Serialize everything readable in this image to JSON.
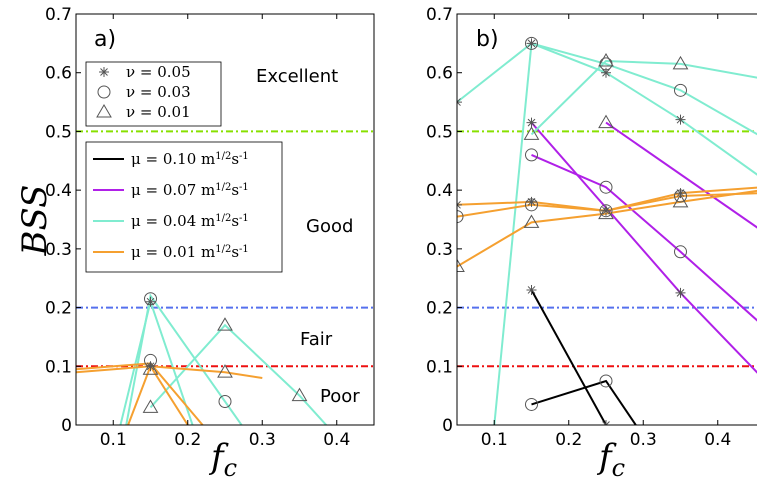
{
  "chart_data": [
    {
      "type": "line",
      "panel": "a)",
      "xlabel": "f_c",
      "ylabel": "BSS",
      "xlim": [
        0.05,
        0.45
      ],
      "ylim": [
        0,
        0.7
      ],
      "xticks": [
        "0.1",
        "0.2",
        "0.3",
        "0.4"
      ],
      "yticks": [
        "0",
        "0.1",
        "0.2",
        "0.3",
        "0.4",
        "0.5",
        "0.6",
        "0.7"
      ],
      "grid": false,
      "thresholds": [
        {
          "y": 0.5,
          "color": "#88e000"
        },
        {
          "y": 0.2,
          "color": "#5570ee"
        },
        {
          "y": 0.1,
          "color": "#ee1010"
        }
      ],
      "zones": [
        "Excellent",
        "Good",
        "Fair",
        "Poor"
      ],
      "marker_legend": [
        {
          "marker": "star",
          "label": "ν = 0.05"
        },
        {
          "marker": "circle",
          "label": "ν = 0.03"
        },
        {
          "marker": "triangle",
          "label": "ν = 0.01"
        }
      ],
      "series_legend": [
        {
          "label": "μ = 0.10 m^{1/2}s^{-1}",
          "color": "#000000"
        },
        {
          "label": "μ = 0.07 m^{1/2}s^{-1}",
          "color": "#b020e8"
        },
        {
          "label": "μ = 0.04 m^{1/2}s^{-1}",
          "color": "#80ecd0"
        },
        {
          "label": "μ = 0.01 m^{1/2}s^{-1}",
          "color": "#f5a030"
        }
      ],
      "series": [
        {
          "mu": 0.04,
          "nu": 0.05,
          "x": [
            0.1,
            0.15,
            0.22
          ],
          "y": [
            -0.05,
            0.21,
            -0.05
          ]
        },
        {
          "mu": 0.04,
          "nu": 0.03,
          "x": [
            0.11,
            0.15,
            0.25,
            0.3
          ],
          "y": [
            -0.05,
            0.22,
            0.04,
            -0.05
          ]
        },
        {
          "mu": 0.04,
          "nu": 0.01,
          "x": [
            0.15,
            0.25,
            0.35,
            0.4
          ],
          "y": [
            0.03,
            0.17,
            0.05,
            -0.02
          ]
        },
        {
          "mu": 0.01,
          "nu": 0.05,
          "x": [
            0.05,
            0.15,
            0.25,
            0.3
          ],
          "y": [
            0.09,
            0.1,
            0.09,
            0.08
          ]
        },
        {
          "mu": 0.01,
          "nu": 0.03,
          "x": [
            0.05,
            0.15,
            0.22
          ],
          "y": [
            0.095,
            0.105,
            0.0
          ]
        },
        {
          "mu": 0.01,
          "nu": 0.01,
          "x": [
            0.12,
            0.15,
            0.2
          ],
          "y": [
            0.0,
            0.1,
            0.0
          ]
        }
      ],
      "markers": [
        {
          "x": 0.15,
          "y": 0.215,
          "m": "circle"
        },
        {
          "x": 0.15,
          "y": 0.21,
          "m": "star"
        },
        {
          "x": 0.15,
          "y": 0.11,
          "m": "circle"
        },
        {
          "x": 0.15,
          "y": 0.1,
          "m": "star"
        },
        {
          "x": 0.15,
          "y": 0.095,
          "m": "triangle"
        },
        {
          "x": 0.15,
          "y": 0.03,
          "m": "triangle"
        },
        {
          "x": 0.25,
          "y": 0.17,
          "m": "triangle"
        },
        {
          "x": 0.25,
          "y": 0.09,
          "m": "triangle"
        },
        {
          "x": 0.25,
          "y": 0.04,
          "m": "circle"
        },
        {
          "x": 0.35,
          "y": 0.05,
          "m": "triangle"
        }
      ]
    },
    {
      "type": "line",
      "panel": "b)",
      "xlabel": "f_c",
      "xlim": [
        0.05,
        0.45
      ],
      "ylim": [
        0,
        0.7
      ],
      "xticks": [
        "0.1",
        "0.2",
        "0.3",
        "0.4"
      ],
      "yticks": [
        "0",
        "0.1",
        "0.2",
        "0.3",
        "0.4",
        "0.5",
        "0.6",
        "0.7"
      ],
      "grid": false,
      "thresholds": [
        {
          "y": 0.5,
          "color": "#88e000"
        },
        {
          "y": 0.2,
          "color": "#5570ee"
        },
        {
          "y": 0.1,
          "color": "#ee1010"
        }
      ],
      "series": [
        {
          "mu": 0.1,
          "nu": 0.05,
          "x": [
            0.15,
            0.25
          ],
          "y": [
            0.23,
            0.0
          ]
        },
        {
          "mu": 0.1,
          "nu": 0.03,
          "x": [
            0.15,
            0.25,
            0.29
          ],
          "y": [
            0.035,
            0.075,
            0.0
          ]
        },
        {
          "mu": 0.07,
          "nu": 0.05,
          "x": [
            0.15,
            0.35,
            0.46
          ],
          "y": [
            0.515,
            0.225,
            0.08
          ]
        },
        {
          "mu": 0.07,
          "nu": 0.03,
          "x": [
            0.15,
            0.25,
            0.35,
            0.46
          ],
          "y": [
            0.46,
            0.405,
            0.295,
            0.17
          ]
        },
        {
          "mu": 0.07,
          "nu": 0.01,
          "x": [
            0.25,
            0.46
          ],
          "y": [
            0.515,
            0.33
          ]
        },
        {
          "mu": 0.04,
          "nu": 0.05,
          "x": [
            0.05,
            0.15,
            0.25,
            0.35,
            0.46
          ],
          "y": [
            0.55,
            0.65,
            0.6,
            0.52,
            0.42
          ]
        },
        {
          "mu": 0.04,
          "nu": 0.03,
          "x": [
            0.1,
            0.15,
            0.25,
            0.35,
            0.46
          ],
          "y": [
            0.0,
            0.65,
            0.615,
            0.57,
            0.49
          ]
        },
        {
          "mu": 0.04,
          "nu": 0.01,
          "x": [
            0.15,
            0.25,
            0.35,
            0.46
          ],
          "y": [
            0.495,
            0.62,
            0.615,
            0.59
          ]
        },
        {
          "mu": 0.01,
          "nu": 0.05,
          "x": [
            0.05,
            0.15,
            0.25,
            0.35,
            0.46
          ],
          "y": [
            0.375,
            0.38,
            0.365,
            0.395,
            0.405
          ]
        },
        {
          "mu": 0.01,
          "nu": 0.03,
          "x": [
            0.05,
            0.15,
            0.25,
            0.35,
            0.46
          ],
          "y": [
            0.355,
            0.375,
            0.365,
            0.39,
            0.395
          ]
        },
        {
          "mu": 0.01,
          "nu": 0.01,
          "x": [
            0.05,
            0.15,
            0.25,
            0.35,
            0.46
          ],
          "y": [
            0.27,
            0.345,
            0.36,
            0.38,
            0.4
          ]
        }
      ],
      "markers": [
        {
          "x": 0.05,
          "y": 0.55,
          "m": "star"
        },
        {
          "x": 0.15,
          "y": 0.65,
          "m": "star"
        },
        {
          "x": 0.15,
          "y": 0.65,
          "m": "circle"
        },
        {
          "x": 0.25,
          "y": 0.6,
          "m": "star"
        },
        {
          "x": 0.25,
          "y": 0.615,
          "m": "circle"
        },
        {
          "x": 0.25,
          "y": 0.62,
          "m": "triangle"
        },
        {
          "x": 0.35,
          "y": 0.615,
          "m": "triangle"
        },
        {
          "x": 0.35,
          "y": 0.57,
          "m": "circle"
        },
        {
          "x": 0.35,
          "y": 0.52,
          "m": "star"
        },
        {
          "x": 0.15,
          "y": 0.515,
          "m": "star"
        },
        {
          "x": 0.15,
          "y": 0.495,
          "m": "triangle"
        },
        {
          "x": 0.25,
          "y": 0.515,
          "m": "triangle"
        },
        {
          "x": 0.15,
          "y": 0.46,
          "m": "circle"
        },
        {
          "x": 0.25,
          "y": 0.405,
          "m": "circle"
        },
        {
          "x": 0.35,
          "y": 0.295,
          "m": "circle"
        },
        {
          "x": 0.35,
          "y": 0.225,
          "m": "star"
        },
        {
          "x": 0.05,
          "y": 0.375,
          "m": "star"
        },
        {
          "x": 0.05,
          "y": 0.355,
          "m": "circle"
        },
        {
          "x": 0.05,
          "y": 0.27,
          "m": "triangle"
        },
        {
          "x": 0.15,
          "y": 0.38,
          "m": "star"
        },
        {
          "x": 0.15,
          "y": 0.375,
          "m": "circle"
        },
        {
          "x": 0.15,
          "y": 0.345,
          "m": "triangle"
        },
        {
          "x": 0.25,
          "y": 0.365,
          "m": "star"
        },
        {
          "x": 0.25,
          "y": 0.365,
          "m": "circle"
        },
        {
          "x": 0.25,
          "y": 0.36,
          "m": "triangle"
        },
        {
          "x": 0.35,
          "y": 0.395,
          "m": "star"
        },
        {
          "x": 0.35,
          "y": 0.39,
          "m": "circle"
        },
        {
          "x": 0.35,
          "y": 0.38,
          "m": "triangle"
        },
        {
          "x": 0.15,
          "y": 0.23,
          "m": "star"
        },
        {
          "x": 0.15,
          "y": 0.035,
          "m": "circle"
        },
        {
          "x": 0.25,
          "y": 0.075,
          "m": "circle"
        },
        {
          "x": 0.25,
          "y": 0.0,
          "m": "star"
        }
      ]
    }
  ]
}
